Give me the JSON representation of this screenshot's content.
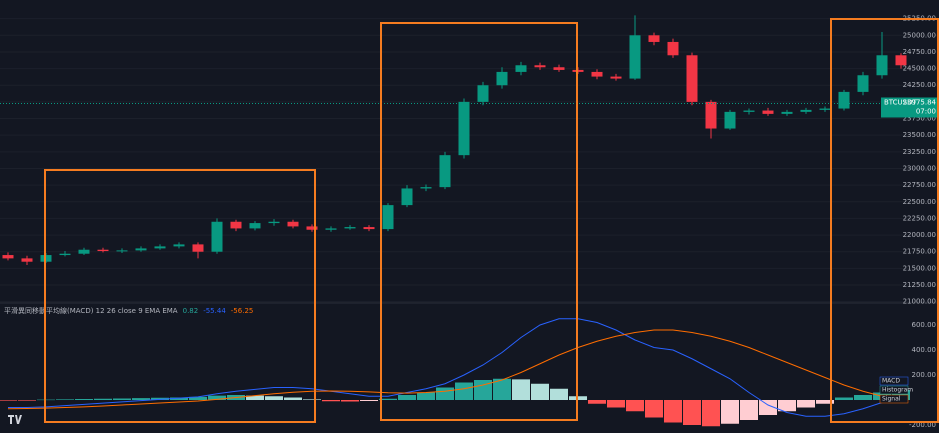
{
  "chart_data": [
    {
      "type": "candlestick",
      "up_color": "#089981",
      "down_color": "#f23645",
      "open": [
        21700,
        21650,
        21600,
        21700,
        21720,
        21780,
        21760,
        21770,
        21800,
        21830,
        21860,
        21750,
        22200,
        22100,
        22180,
        22200,
        22130,
        22080,
        22100,
        22120,
        22090,
        22450,
        22700,
        22720,
        23200,
        24000,
        24250,
        24450,
        24550,
        24520,
        24480,
        24450,
        24380,
        24350,
        25000,
        24900,
        24700,
        24000,
        23600,
        23850,
        23870,
        23820,
        23850,
        23880,
        23900,
        24150,
        24400,
        24700
      ],
      "high": [
        21740,
        21690,
        21730,
        21760,
        21810,
        21810,
        21800,
        21830,
        21860,
        21890,
        21890,
        22250,
        22230,
        22210,
        22240,
        22230,
        22160,
        22130,
        22150,
        22150,
        22480,
        22750,
        22760,
        23250,
        24050,
        24300,
        24520,
        24600,
        24590,
        24560,
        24520,
        24490,
        24420,
        25300,
        25040,
        24950,
        24740,
        24030,
        23880,
        23900,
        23910,
        23880,
        23910,
        23930,
        24180,
        24450,
        25050,
        24730
      ],
      "low": [
        21620,
        21550,
        21580,
        21680,
        21700,
        21740,
        21730,
        21750,
        21780,
        21800,
        21650,
        21720,
        22060,
        22070,
        22140,
        22100,
        22050,
        22050,
        22080,
        22060,
        22060,
        22420,
        22660,
        22690,
        23150,
        23950,
        24200,
        24400,
        24480,
        24450,
        24420,
        24340,
        24320,
        24330,
        24850,
        24660,
        23950,
        23450,
        23580,
        23810,
        23790,
        23790,
        23820,
        23850,
        23870,
        24100,
        24350,
        24500
      ],
      "close": [
        21650,
        21600,
        21700,
        21720,
        21780,
        21760,
        21770,
        21800,
        21830,
        21860,
        21750,
        22200,
        22100,
        22180,
        22200,
        22130,
        22080,
        22100,
        22120,
        22090,
        22450,
        22700,
        22720,
        23200,
        24000,
        24250,
        24450,
        24550,
        24520,
        24480,
        24450,
        24380,
        24350,
        25000,
        24900,
        24700,
        24000,
        23600,
        23850,
        23870,
        23820,
        23850,
        23880,
        23900,
        24150,
        24400,
        24700,
        24550
      ],
      "ylim": [
        20980,
        25530
      ],
      "yticks": [
        {
          "value": 25250,
          "label": "25250.00"
        },
        {
          "value": 25000,
          "label": "25000.00"
        },
        {
          "value": 24750,
          "label": "24750.00"
        },
        {
          "value": 24500,
          "label": "24500.00"
        },
        {
          "value": 24250,
          "label": "24250.00"
        },
        {
          "value": 24000,
          "label": "24000.00"
        },
        {
          "value": 23750,
          "label": "23750.00"
        },
        {
          "value": 23500,
          "label": "23500.00"
        },
        {
          "value": 23250,
          "label": "23250.00"
        },
        {
          "value": 23000,
          "label": "23000.00"
        },
        {
          "value": 22750,
          "label": "22750.00"
        },
        {
          "value": 22500,
          "label": "22500.00"
        },
        {
          "value": 22250,
          "label": "22250.00"
        },
        {
          "value": 22000,
          "label": "22000.00"
        },
        {
          "value": 21750,
          "label": "21750.00"
        },
        {
          "value": 21500,
          "label": "21500.00"
        },
        {
          "value": 21250,
          "label": "21250.00"
        },
        {
          "value": 21000,
          "label": "21000.00"
        }
      ],
      "last_price": {
        "symbol": "BTCUSDT",
        "price": 23975.84,
        "countdown": "07:00"
      }
    },
    {
      "type": "macd",
      "title": "平滑異同移動平均線(MACD) 12 26 close 9 EMA EMA",
      "legend_values": [
        0.82,
        -55.44,
        -56.25
      ],
      "legend_colors": [
        "#26a69a",
        "#2962ff",
        "#ff6d00"
      ],
      "histogram": [
        -5,
        -5,
        3,
        5,
        8,
        10,
        12,
        15,
        18,
        20,
        25,
        35,
        40,
        35,
        30,
        20,
        5,
        -10,
        -12,
        -8,
        10,
        40,
        60,
        100,
        140,
        160,
        170,
        165,
        130,
        90,
        30,
        -30,
        -60,
        -90,
        -140,
        -180,
        -200,
        -210,
        -190,
        -160,
        -120,
        -90,
        -60,
        -30,
        20,
        40,
        60,
        80
      ],
      "series": [
        {
          "name": "MACD",
          "color": "#2962ff",
          "values": [
            -60,
            -60,
            -55,
            -45,
            -35,
            -25,
            -15,
            -5,
            5,
            15,
            25,
            50,
            70,
            85,
            100,
            100,
            90,
            70,
            50,
            30,
            30,
            60,
            90,
            130,
            200,
            280,
            380,
            500,
            600,
            650,
            650,
            620,
            560,
            480,
            420,
            400,
            330,
            250,
            170,
            60,
            -40,
            -100,
            -130,
            -130,
            -110,
            -70,
            -20,
            40
          ]
        },
        {
          "name": "Signal",
          "color": "#ff6d00",
          "values": [
            -70,
            -68,
            -65,
            -60,
            -55,
            -48,
            -40,
            -32,
            -24,
            -16,
            -8,
            5,
            20,
            35,
            50,
            62,
            70,
            72,
            70,
            65,
            58,
            55,
            60,
            70,
            90,
            120,
            160,
            220,
            290,
            360,
            420,
            470,
            510,
            540,
            560,
            560,
            540,
            510,
            470,
            420,
            360,
            300,
            240,
            180,
            120,
            70,
            30,
            10
          ]
        }
      ],
      "histogram_name": "Histogram",
      "ylim": [
        -264,
        760
      ],
      "yticks": [
        {
          "value": 600,
          "label": "600.00"
        },
        {
          "value": 400,
          "label": "400.00"
        },
        {
          "value": 200,
          "label": "200.00"
        },
        {
          "value": -200,
          "label": "-200.00"
        }
      ]
    }
  ]
}
